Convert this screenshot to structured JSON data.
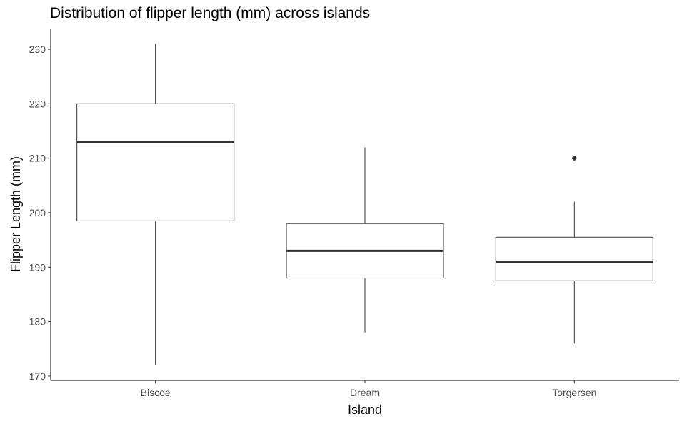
{
  "chart_data": {
    "type": "box",
    "title": "Distribution of flipper length (mm) across islands",
    "xlabel": "Island",
    "ylabel": "Flipper Length (mm)",
    "ylim": [
      169.2,
      233.8
    ],
    "yticks": [
      170,
      180,
      190,
      200,
      210,
      220,
      230
    ],
    "grid": false,
    "categories": [
      "Biscoe",
      "Dream",
      "Torgersen"
    ],
    "boxes": [
      {
        "category": "Biscoe",
        "whisker_low": 172,
        "q1": 198.5,
        "median": 213,
        "q3": 220,
        "whisker_high": 231,
        "outliers": []
      },
      {
        "category": "Dream",
        "whisker_low": 178,
        "q1": 188,
        "median": 193,
        "q3": 198,
        "whisker_high": 212,
        "outliers": []
      },
      {
        "category": "Torgersen",
        "whisker_low": 176,
        "q1": 187.5,
        "median": 191,
        "q3": 195.5,
        "whisker_high": 202,
        "outliers": [
          210
        ]
      }
    ]
  }
}
